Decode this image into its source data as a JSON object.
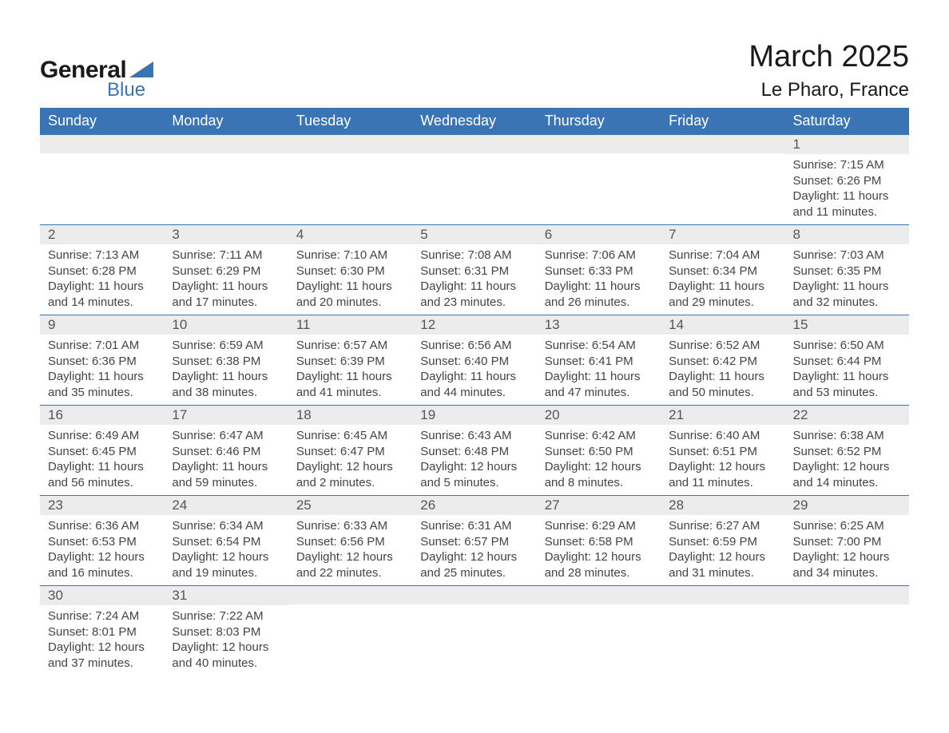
{
  "logo": {
    "word1": "General",
    "word2": "Blue",
    "accent_color": "#3b74b5"
  },
  "title": "March 2025",
  "location": "Le Pharo, France",
  "colors": {
    "header_bg": "#3b74b5",
    "header_text": "#ffffff",
    "daynum_bg": "#ececec",
    "text": "#444444",
    "border_top": "#3b74b5"
  },
  "fonts": {
    "title_size_pt": 28,
    "location_size_pt": 18,
    "header_size_pt": 14,
    "body_size_pt": 11
  },
  "day_headers": [
    "Sunday",
    "Monday",
    "Tuesday",
    "Wednesday",
    "Thursday",
    "Friday",
    "Saturday"
  ],
  "weeks": [
    [
      {
        "day": "",
        "sunrise": "",
        "sunset": "",
        "daylight": ""
      },
      {
        "day": "",
        "sunrise": "",
        "sunset": "",
        "daylight": ""
      },
      {
        "day": "",
        "sunrise": "",
        "sunset": "",
        "daylight": ""
      },
      {
        "day": "",
        "sunrise": "",
        "sunset": "",
        "daylight": ""
      },
      {
        "day": "",
        "sunrise": "",
        "sunset": "",
        "daylight": ""
      },
      {
        "day": "",
        "sunrise": "",
        "sunset": "",
        "daylight": ""
      },
      {
        "day": "1",
        "sunrise": "Sunrise: 7:15 AM",
        "sunset": "Sunset: 6:26 PM",
        "daylight": "Daylight: 11 hours and 11 minutes."
      }
    ],
    [
      {
        "day": "2",
        "sunrise": "Sunrise: 7:13 AM",
        "sunset": "Sunset: 6:28 PM",
        "daylight": "Daylight: 11 hours and 14 minutes."
      },
      {
        "day": "3",
        "sunrise": "Sunrise: 7:11 AM",
        "sunset": "Sunset: 6:29 PM",
        "daylight": "Daylight: 11 hours and 17 minutes."
      },
      {
        "day": "4",
        "sunrise": "Sunrise: 7:10 AM",
        "sunset": "Sunset: 6:30 PM",
        "daylight": "Daylight: 11 hours and 20 minutes."
      },
      {
        "day": "5",
        "sunrise": "Sunrise: 7:08 AM",
        "sunset": "Sunset: 6:31 PM",
        "daylight": "Daylight: 11 hours and 23 minutes."
      },
      {
        "day": "6",
        "sunrise": "Sunrise: 7:06 AM",
        "sunset": "Sunset: 6:33 PM",
        "daylight": "Daylight: 11 hours and 26 minutes."
      },
      {
        "day": "7",
        "sunrise": "Sunrise: 7:04 AM",
        "sunset": "Sunset: 6:34 PM",
        "daylight": "Daylight: 11 hours and 29 minutes."
      },
      {
        "day": "8",
        "sunrise": "Sunrise: 7:03 AM",
        "sunset": "Sunset: 6:35 PM",
        "daylight": "Daylight: 11 hours and 32 minutes."
      }
    ],
    [
      {
        "day": "9",
        "sunrise": "Sunrise: 7:01 AM",
        "sunset": "Sunset: 6:36 PM",
        "daylight": "Daylight: 11 hours and 35 minutes."
      },
      {
        "day": "10",
        "sunrise": "Sunrise: 6:59 AM",
        "sunset": "Sunset: 6:38 PM",
        "daylight": "Daylight: 11 hours and 38 minutes."
      },
      {
        "day": "11",
        "sunrise": "Sunrise: 6:57 AM",
        "sunset": "Sunset: 6:39 PM",
        "daylight": "Daylight: 11 hours and 41 minutes."
      },
      {
        "day": "12",
        "sunrise": "Sunrise: 6:56 AM",
        "sunset": "Sunset: 6:40 PM",
        "daylight": "Daylight: 11 hours and 44 minutes."
      },
      {
        "day": "13",
        "sunrise": "Sunrise: 6:54 AM",
        "sunset": "Sunset: 6:41 PM",
        "daylight": "Daylight: 11 hours and 47 minutes."
      },
      {
        "day": "14",
        "sunrise": "Sunrise: 6:52 AM",
        "sunset": "Sunset: 6:42 PM",
        "daylight": "Daylight: 11 hours and 50 minutes."
      },
      {
        "day": "15",
        "sunrise": "Sunrise: 6:50 AM",
        "sunset": "Sunset: 6:44 PM",
        "daylight": "Daylight: 11 hours and 53 minutes."
      }
    ],
    [
      {
        "day": "16",
        "sunrise": "Sunrise: 6:49 AM",
        "sunset": "Sunset: 6:45 PM",
        "daylight": "Daylight: 11 hours and 56 minutes."
      },
      {
        "day": "17",
        "sunrise": "Sunrise: 6:47 AM",
        "sunset": "Sunset: 6:46 PM",
        "daylight": "Daylight: 11 hours and 59 minutes."
      },
      {
        "day": "18",
        "sunrise": "Sunrise: 6:45 AM",
        "sunset": "Sunset: 6:47 PM",
        "daylight": "Daylight: 12 hours and 2 minutes."
      },
      {
        "day": "19",
        "sunrise": "Sunrise: 6:43 AM",
        "sunset": "Sunset: 6:48 PM",
        "daylight": "Daylight: 12 hours and 5 minutes."
      },
      {
        "day": "20",
        "sunrise": "Sunrise: 6:42 AM",
        "sunset": "Sunset: 6:50 PM",
        "daylight": "Daylight: 12 hours and 8 minutes."
      },
      {
        "day": "21",
        "sunrise": "Sunrise: 6:40 AM",
        "sunset": "Sunset: 6:51 PM",
        "daylight": "Daylight: 12 hours and 11 minutes."
      },
      {
        "day": "22",
        "sunrise": "Sunrise: 6:38 AM",
        "sunset": "Sunset: 6:52 PM",
        "daylight": "Daylight: 12 hours and 14 minutes."
      }
    ],
    [
      {
        "day": "23",
        "sunrise": "Sunrise: 6:36 AM",
        "sunset": "Sunset: 6:53 PM",
        "daylight": "Daylight: 12 hours and 16 minutes."
      },
      {
        "day": "24",
        "sunrise": "Sunrise: 6:34 AM",
        "sunset": "Sunset: 6:54 PM",
        "daylight": "Daylight: 12 hours and 19 minutes."
      },
      {
        "day": "25",
        "sunrise": "Sunrise: 6:33 AM",
        "sunset": "Sunset: 6:56 PM",
        "daylight": "Daylight: 12 hours and 22 minutes."
      },
      {
        "day": "26",
        "sunrise": "Sunrise: 6:31 AM",
        "sunset": "Sunset: 6:57 PM",
        "daylight": "Daylight: 12 hours and 25 minutes."
      },
      {
        "day": "27",
        "sunrise": "Sunrise: 6:29 AM",
        "sunset": "Sunset: 6:58 PM",
        "daylight": "Daylight: 12 hours and 28 minutes."
      },
      {
        "day": "28",
        "sunrise": "Sunrise: 6:27 AM",
        "sunset": "Sunset: 6:59 PM",
        "daylight": "Daylight: 12 hours and 31 minutes."
      },
      {
        "day": "29",
        "sunrise": "Sunrise: 6:25 AM",
        "sunset": "Sunset: 7:00 PM",
        "daylight": "Daylight: 12 hours and 34 minutes."
      }
    ],
    [
      {
        "day": "30",
        "sunrise": "Sunrise: 7:24 AM",
        "sunset": "Sunset: 8:01 PM",
        "daylight": "Daylight: 12 hours and 37 minutes."
      },
      {
        "day": "31",
        "sunrise": "Sunrise: 7:22 AM",
        "sunset": "Sunset: 8:03 PM",
        "daylight": "Daylight: 12 hours and 40 minutes."
      },
      {
        "day": "",
        "sunrise": "",
        "sunset": "",
        "daylight": ""
      },
      {
        "day": "",
        "sunrise": "",
        "sunset": "",
        "daylight": ""
      },
      {
        "day": "",
        "sunrise": "",
        "sunset": "",
        "daylight": ""
      },
      {
        "day": "",
        "sunrise": "",
        "sunset": "",
        "daylight": ""
      },
      {
        "day": "",
        "sunrise": "",
        "sunset": "",
        "daylight": ""
      }
    ]
  ]
}
